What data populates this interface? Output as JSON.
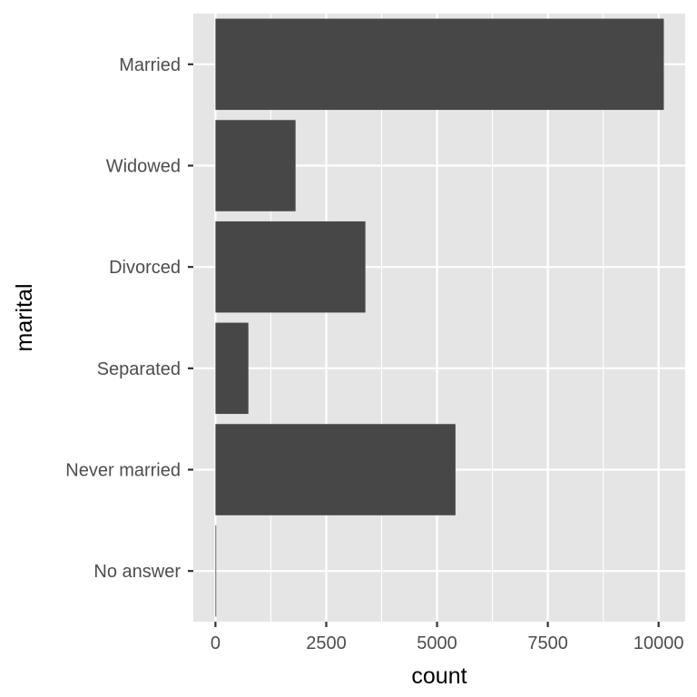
{
  "chart_data": {
    "type": "bar",
    "orientation": "horizontal",
    "categories": [
      "Married",
      "Widowed",
      "Divorced",
      "Separated",
      "Never married",
      "No answer"
    ],
    "values": [
      10117,
      1807,
      3383,
      743,
      5416,
      17
    ],
    "xlabel": "count",
    "ylabel": "marital",
    "xlim": [
      -500,
      10600
    ],
    "xticks": [
      0,
      2500,
      5000,
      7500,
      10000
    ],
    "xtick_labels": [
      "0",
      "2500",
      "5000",
      "7500",
      "10000"
    ],
    "grid": true,
    "legend": "none",
    "colors": {
      "panel_background": "#e5e5e5",
      "grid_line": "#ffffff",
      "bar_fill": "#474747",
      "tick_text": "#4d4d4d",
      "tick_mark": "#333333",
      "axis_title": "#000000"
    }
  }
}
